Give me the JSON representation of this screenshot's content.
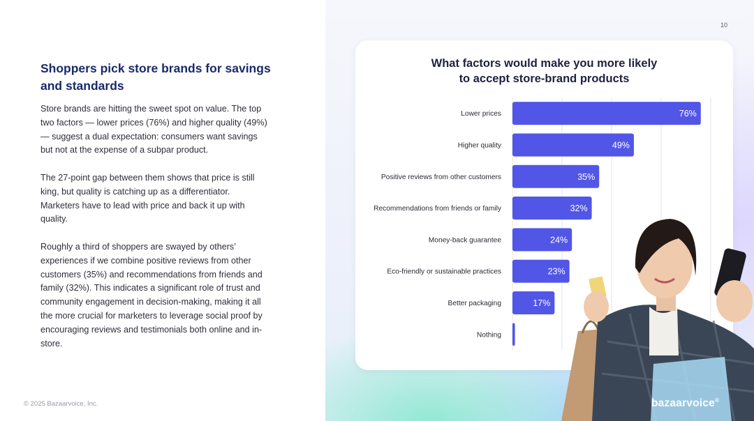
{
  "page": {
    "number": "10",
    "headline": "Shoppers pick store brands for savings and standards",
    "paragraphs": [
      "Store brands are hitting the sweet spot on value. The top two factors — lower prices (76%) and higher quality (49%) — suggest a dual expectation: consumers want savings but not at the expense of a subpar product.",
      "The 27-point gap between them shows that price is still king, but quality is catching up as a differentiator. Marketers have to lead with price and back it up with quality.",
      "Roughly a third of shoppers are swayed by others’ experiences if we combine positive reviews from other customers (35%) and recommendations from friends and family (32%). This indicates a significant role of trust and community engagement in decision-making, making it all the more crucial for marketers to leverage social proof by encouraging reviews and testimonials both online and in-store."
    ],
    "copyright": "© 2025 Bazaarvoice, Inc.",
    "brand": "bazaarvoice",
    "brand_mark": "®"
  },
  "colors": {
    "bar": "#5256e6",
    "headline": "#1b2a6b",
    "grid": "#e4e4ea"
  },
  "chart_data": {
    "type": "bar",
    "orientation": "horizontal",
    "title_lines": [
      "What factors would make you more likely",
      "to accept store-brand products"
    ],
    "categories": [
      "Lower prices",
      "Higher quality",
      "Positive reviews from other customers",
      "Recommendations from friends or family",
      "Money-back guarantee",
      "Eco-friendly or sustainable practices",
      "Better packaging",
      "Nothing"
    ],
    "values": [
      76,
      49,
      35,
      32,
      24,
      23,
      17,
      1
    ],
    "labels": [
      "76%",
      "49%",
      "35%",
      "32%",
      "24%",
      "23%",
      "17%",
      ""
    ],
    "value_unit": "%",
    "xlim": [
      0,
      100
    ],
    "gridlines": [
      0,
      20,
      40,
      60,
      80,
      100
    ],
    "grid": true,
    "legend": "none"
  }
}
